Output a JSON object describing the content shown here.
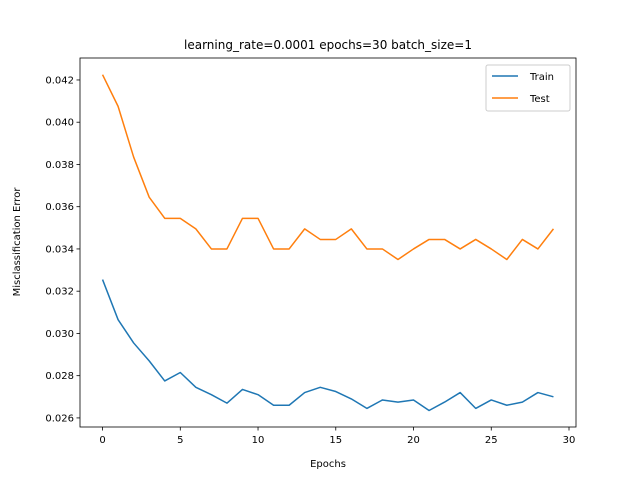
{
  "chart_data": {
    "type": "line",
    "title": "learning_rate=0.0001 epochs=30 batch_size=1",
    "xlabel": "Epochs",
    "ylabel": "Misclassification Error",
    "xlim": [
      -1.45,
      30.45
    ],
    "ylim": [
      0.02557,
      0.04304
    ],
    "xticks": [
      0,
      5,
      10,
      15,
      20,
      25,
      30
    ],
    "yticks": [
      0.026,
      0.028,
      0.03,
      0.032,
      0.034,
      0.036,
      0.038,
      0.04,
      0.042
    ],
    "ytick_labels": [
      "0.026",
      "0.028",
      "0.030",
      "0.032",
      "0.034",
      "0.036",
      "0.038",
      "0.040",
      "0.042"
    ],
    "grid": false,
    "legend": "top-right",
    "x": [
      0,
      1,
      2,
      3,
      4,
      5,
      6,
      7,
      8,
      9,
      10,
      11,
      12,
      13,
      14,
      15,
      16,
      17,
      18,
      19,
      20,
      21,
      22,
      23,
      24,
      25,
      26,
      27,
      28,
      29
    ],
    "series": [
      {
        "name": "Train",
        "color": "#1f77b4",
        "values": [
          0.03255,
          0.03065,
          0.02955,
          0.0287,
          0.02775,
          0.02815,
          0.02745,
          0.0271,
          0.0267,
          0.02735,
          0.0271,
          0.0266,
          0.0266,
          0.0272,
          0.02745,
          0.02725,
          0.0269,
          0.02645,
          0.02685,
          0.02675,
          0.02685,
          0.02635,
          0.02675,
          0.0272,
          0.02645,
          0.02685,
          0.0266,
          0.02675,
          0.0272,
          0.027
        ]
      },
      {
        "name": "Test",
        "color": "#ff7f0e",
        "values": [
          0.04225,
          0.04075,
          0.03835,
          0.03645,
          0.03545,
          0.03545,
          0.03495,
          0.034,
          0.034,
          0.03545,
          0.03545,
          0.034,
          0.034,
          0.03495,
          0.03445,
          0.03445,
          0.03495,
          0.034,
          0.034,
          0.0335,
          0.034,
          0.03445,
          0.03445,
          0.034,
          0.03445,
          0.034,
          0.0335,
          0.03445,
          0.034,
          0.03495
        ]
      }
    ]
  }
}
